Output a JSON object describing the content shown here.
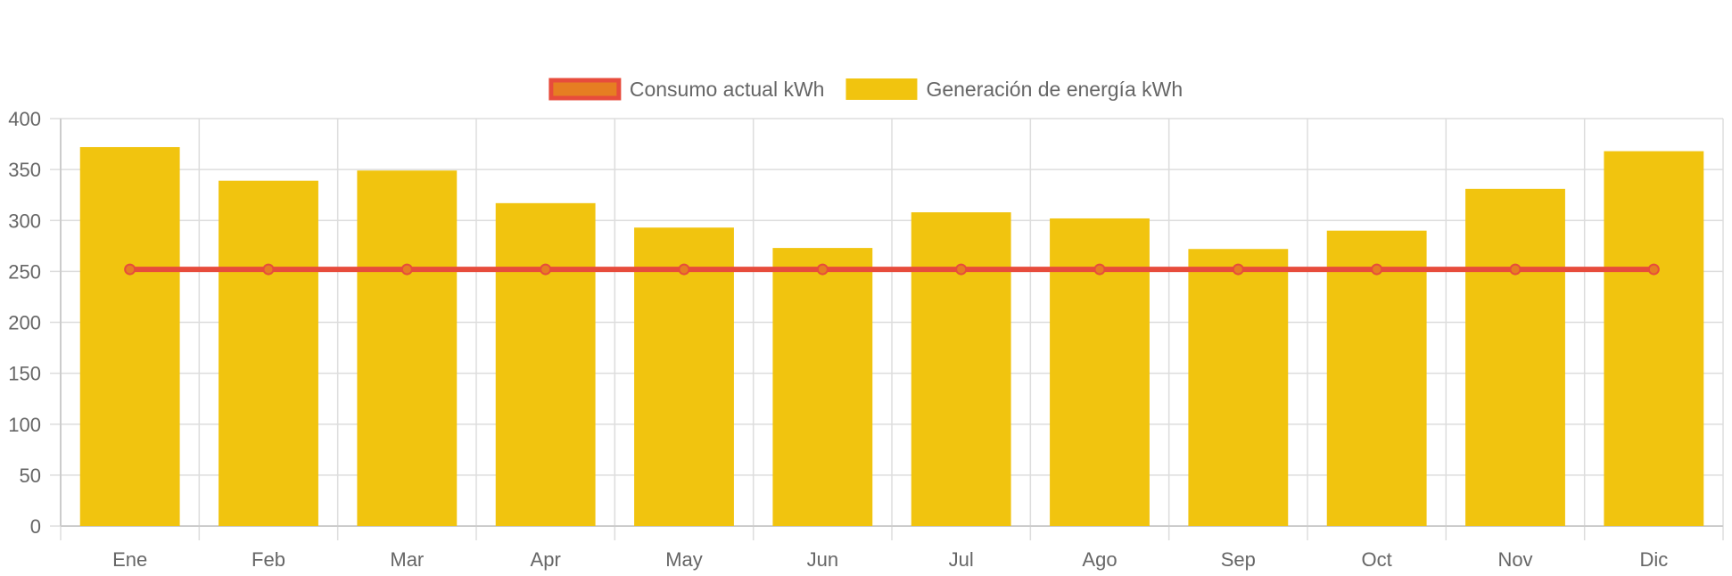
{
  "chart_data": {
    "type": "bar",
    "categories": [
      "Ene",
      "Feb",
      "Mar",
      "Apr",
      "May",
      "Jun",
      "Jul",
      "Ago",
      "Sep",
      "Oct",
      "Nov",
      "Dic"
    ],
    "series": [
      {
        "name": "Consumo actual kWh",
        "kind": "line",
        "color": "#e74c3c",
        "fill": "#e67e22",
        "values": [
          252,
          252,
          252,
          252,
          252,
          252,
          252,
          252,
          252,
          252,
          252,
          252
        ]
      },
      {
        "name": "Generación de energía kWh",
        "kind": "bar",
        "color": "#f1c40f",
        "values": [
          372,
          339,
          349,
          317,
          293,
          273,
          308,
          302,
          272,
          290,
          331,
          368
        ]
      }
    ],
    "ylim": [
      0,
      400
    ],
    "yticks": [
      0,
      50,
      100,
      150,
      200,
      250,
      300,
      350,
      400
    ],
    "grid": true,
    "legend_position": "top-center",
    "xlabel": "",
    "ylabel": "",
    "title": ""
  }
}
